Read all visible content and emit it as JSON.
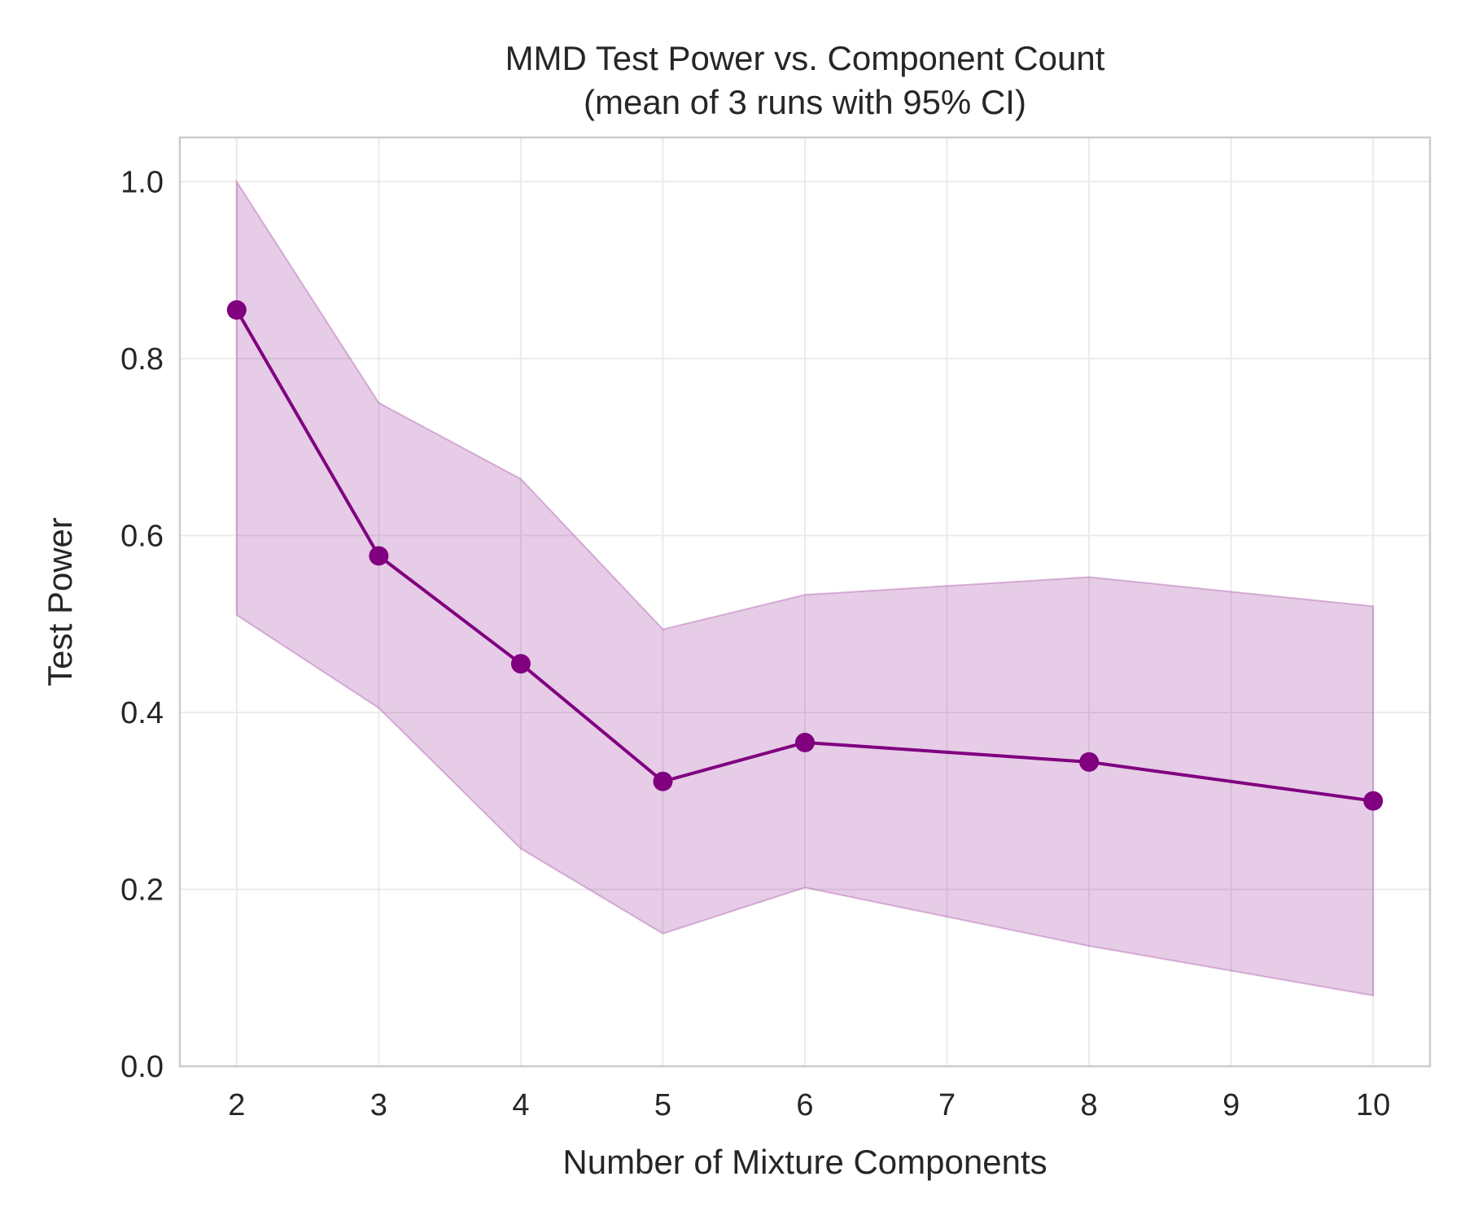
{
  "chart_data": {
    "type": "line",
    "title": "MMD Test Power vs. Component Count",
    "subtitle": "(mean of 3 runs with 95% CI)",
    "xlabel": "Number of Mixture Components",
    "ylabel": "Test Power",
    "x_ticks": [
      "2",
      "3",
      "4",
      "5",
      "6",
      "7",
      "8",
      "9",
      "10"
    ],
    "y_ticks": [
      "0.0",
      "0.2",
      "0.4",
      "0.6",
      "0.8",
      "1.0"
    ],
    "xlim": [
      1.6,
      10.4
    ],
    "ylim": [
      0.0,
      1.05
    ],
    "grid": true,
    "series": [
      {
        "x": [
          2,
          3,
          4,
          5,
          6,
          8,
          10
        ],
        "y": [
          0.855,
          0.577,
          0.455,
          0.322,
          0.366,
          0.344,
          0.3
        ],
        "ci_lower": [
          0.51,
          0.405,
          0.246,
          0.15,
          0.202,
          0.136,
          0.08
        ],
        "ci_upper": [
          1.0,
          0.75,
          0.664,
          0.494,
          0.533,
          0.553,
          0.52
        ],
        "color": "#800080"
      }
    ],
    "band_color": "#800080"
  }
}
